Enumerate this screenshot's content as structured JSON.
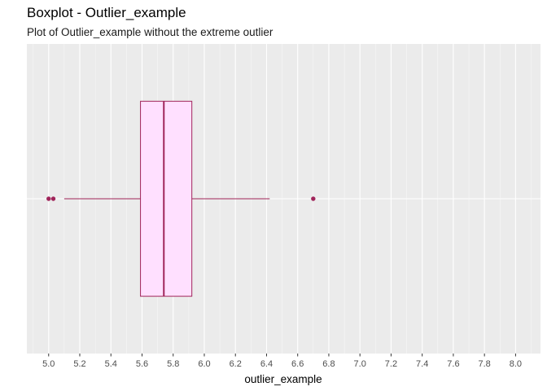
{
  "chart_data": {
    "type": "boxplot",
    "title": "Boxplot - Outlier_example",
    "subtitle": "Plot of Outlier_example without the extreme outlier",
    "xlabel": "outlier_example",
    "ylabel": "",
    "xlim": [
      4.86,
      8.16
    ],
    "x_ticks": [
      5.0,
      5.2,
      5.4,
      5.6,
      5.8,
      6.0,
      6.2,
      6.4,
      6.6,
      6.8,
      7.0,
      7.2,
      7.4,
      7.6,
      7.8,
      8.0
    ],
    "x_tick_labels": [
      "5.0",
      "5.2",
      "5.4",
      "5.6",
      "5.8",
      "6.0",
      "6.2",
      "6.4",
      "6.6",
      "6.8",
      "7.0",
      "7.2",
      "7.4",
      "7.6",
      "7.8",
      "8.0"
    ],
    "grid": true,
    "box": {
      "q1": 5.59,
      "median": 5.74,
      "q3": 5.92,
      "whisker_low": 5.1,
      "whisker_high": 6.42
    },
    "outliers": [
      5.0,
      5.03,
      6.7
    ],
    "colors": {
      "box_fill": "#FFE0FF",
      "box_line": "#A0245A",
      "point": "#A0245A",
      "panel_bg": "#EBEBEB",
      "grid_major": "#FFFFFF"
    }
  }
}
